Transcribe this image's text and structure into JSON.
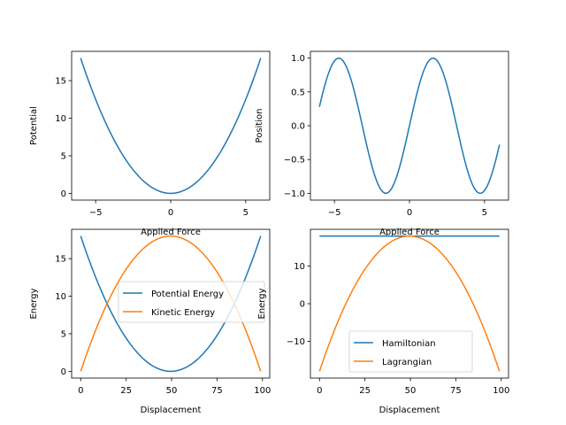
{
  "colors": {
    "blue": "#1f77b4",
    "orange": "#ff7f0e",
    "frame": "#000000"
  },
  "chart_data": [
    {
      "type": "line",
      "xlabel": "Applied Force",
      "ylabel": "Potential",
      "xlim": [
        -6.6,
        6.6
      ],
      "ylim": [
        -0.9,
        18.9
      ],
      "xticks": [
        -5,
        0,
        5
      ],
      "yticks": [
        0,
        5,
        10,
        15
      ],
      "grid": false,
      "series": [
        {
          "function": "0.5*x^2",
          "x_range": [
            -6,
            6
          ],
          "samples": 100,
          "color": "#1f77b4"
        }
      ]
    },
    {
      "type": "line",
      "xlabel": "Applied Force",
      "ylabel": "Position",
      "xlim": [
        -6.6,
        6.6
      ],
      "ylim": [
        -1.1,
        1.1
      ],
      "xticks": [
        -5,
        0,
        5
      ],
      "yticks": [
        -1.0,
        -0.5,
        0.0,
        0.5,
        1.0
      ],
      "ytick_labels": [
        "−1.0",
        "−0.5",
        "0.0",
        "0.5",
        "1.0"
      ],
      "grid": false,
      "series": [
        {
          "function": "sin(x)",
          "x_range": [
            -6,
            6
          ],
          "samples": 100,
          "color": "#1f77b4"
        }
      ]
    },
    {
      "type": "line",
      "xlabel": "Displacement",
      "ylabel": "Energy",
      "xlim": [
        -5,
        104
      ],
      "ylim": [
        -0.9,
        18.9
      ],
      "xticks": [
        0,
        25,
        50,
        75,
        100
      ],
      "yticks": [
        0,
        5,
        10,
        15
      ],
      "grid": false,
      "legend": "center-right",
      "series": [
        {
          "name": "Potential Energy",
          "function": "0.5*x^2",
          "x_range": [
            0,
            99
          ],
          "param_range": [
            -6,
            6
          ],
          "samples": 100,
          "color": "#1f77b4"
        },
        {
          "name": "Kinetic Energy",
          "function": "18-0.5*x^2",
          "x_range": [
            0,
            99
          ],
          "param_range": [
            -6,
            6
          ],
          "samples": 100,
          "color": "#ff7f0e"
        }
      ]
    },
    {
      "type": "line",
      "xlabel": "Displacement",
      "ylabel": "Energy",
      "xlim": [
        -5,
        104
      ],
      "ylim": [
        -19.8,
        19.8
      ],
      "xticks": [
        0,
        25,
        50,
        75,
        100
      ],
      "yticks": [
        -10,
        0,
        10
      ],
      "ytick_labels": [
        "−10",
        "0",
        "10"
      ],
      "grid": false,
      "legend": "lower-center",
      "series": [
        {
          "name": "Hamiltonian",
          "function": "18",
          "x_range": [
            0,
            99
          ],
          "param_range": [
            -6,
            6
          ],
          "samples": 100,
          "color": "#1f77b4"
        },
        {
          "name": "Lagrangian",
          "function": "18-x^2",
          "x_range": [
            0,
            99
          ],
          "param_range": [
            -6,
            6
          ],
          "samples": 100,
          "color": "#ff7f0e"
        }
      ]
    }
  ]
}
